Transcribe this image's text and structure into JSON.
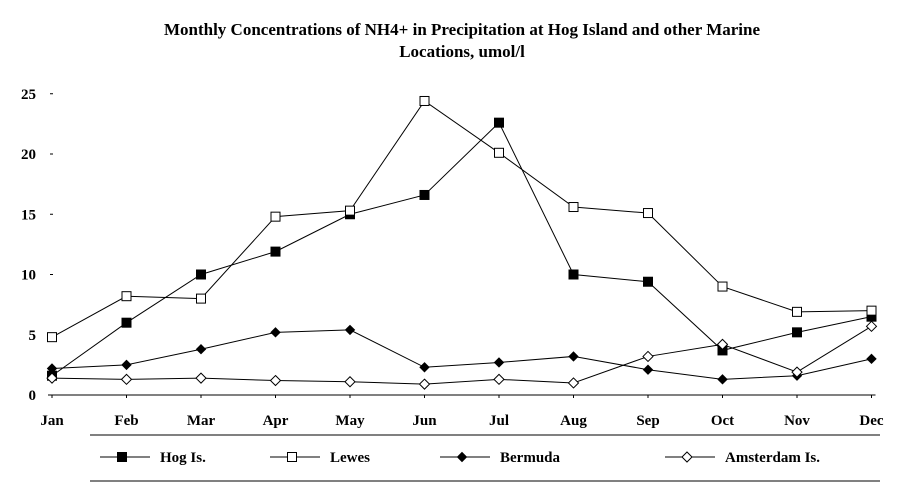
{
  "chart_data": {
    "type": "line",
    "title_line1": "Monthly Concentrations of NH4+ in Precipitation at Hog Island and other Marine",
    "title_line2": "Locations, umol/l",
    "categories": [
      "Jan",
      "Feb",
      "Mar",
      "Apr",
      "May",
      "Jun",
      "Jul",
      "Aug",
      "Sep",
      "Oct",
      "Nov",
      "Dec"
    ],
    "ylim": [
      0,
      25
    ],
    "yticks": [
      0,
      5,
      10,
      15,
      20,
      25
    ],
    "grid": false,
    "legend_position": "bottom",
    "series": [
      {
        "name": "Hog Is.",
        "marker": "filled-square",
        "values": [
          1.6,
          6.0,
          10.0,
          11.9,
          15.0,
          16.6,
          22.6,
          10.0,
          9.4,
          3.7,
          5.2,
          6.5
        ]
      },
      {
        "name": "Lewes",
        "marker": "open-square",
        "values": [
          4.8,
          8.2,
          8.0,
          14.8,
          15.3,
          24.4,
          20.1,
          15.6,
          15.1,
          9.0,
          6.9,
          7.0
        ]
      },
      {
        "name": "Bermuda",
        "marker": "filled-diamond",
        "values": [
          2.2,
          2.5,
          3.8,
          5.2,
          5.4,
          2.3,
          2.7,
          3.2,
          2.1,
          1.3,
          1.6,
          3.0
        ]
      },
      {
        "name": "Amsterdam Is.",
        "marker": "open-diamond",
        "values": [
          1.4,
          1.3,
          1.4,
          1.2,
          1.1,
          0.9,
          1.3,
          1.0,
          3.2,
          4.2,
          1.9,
          5.7
        ]
      }
    ]
  }
}
